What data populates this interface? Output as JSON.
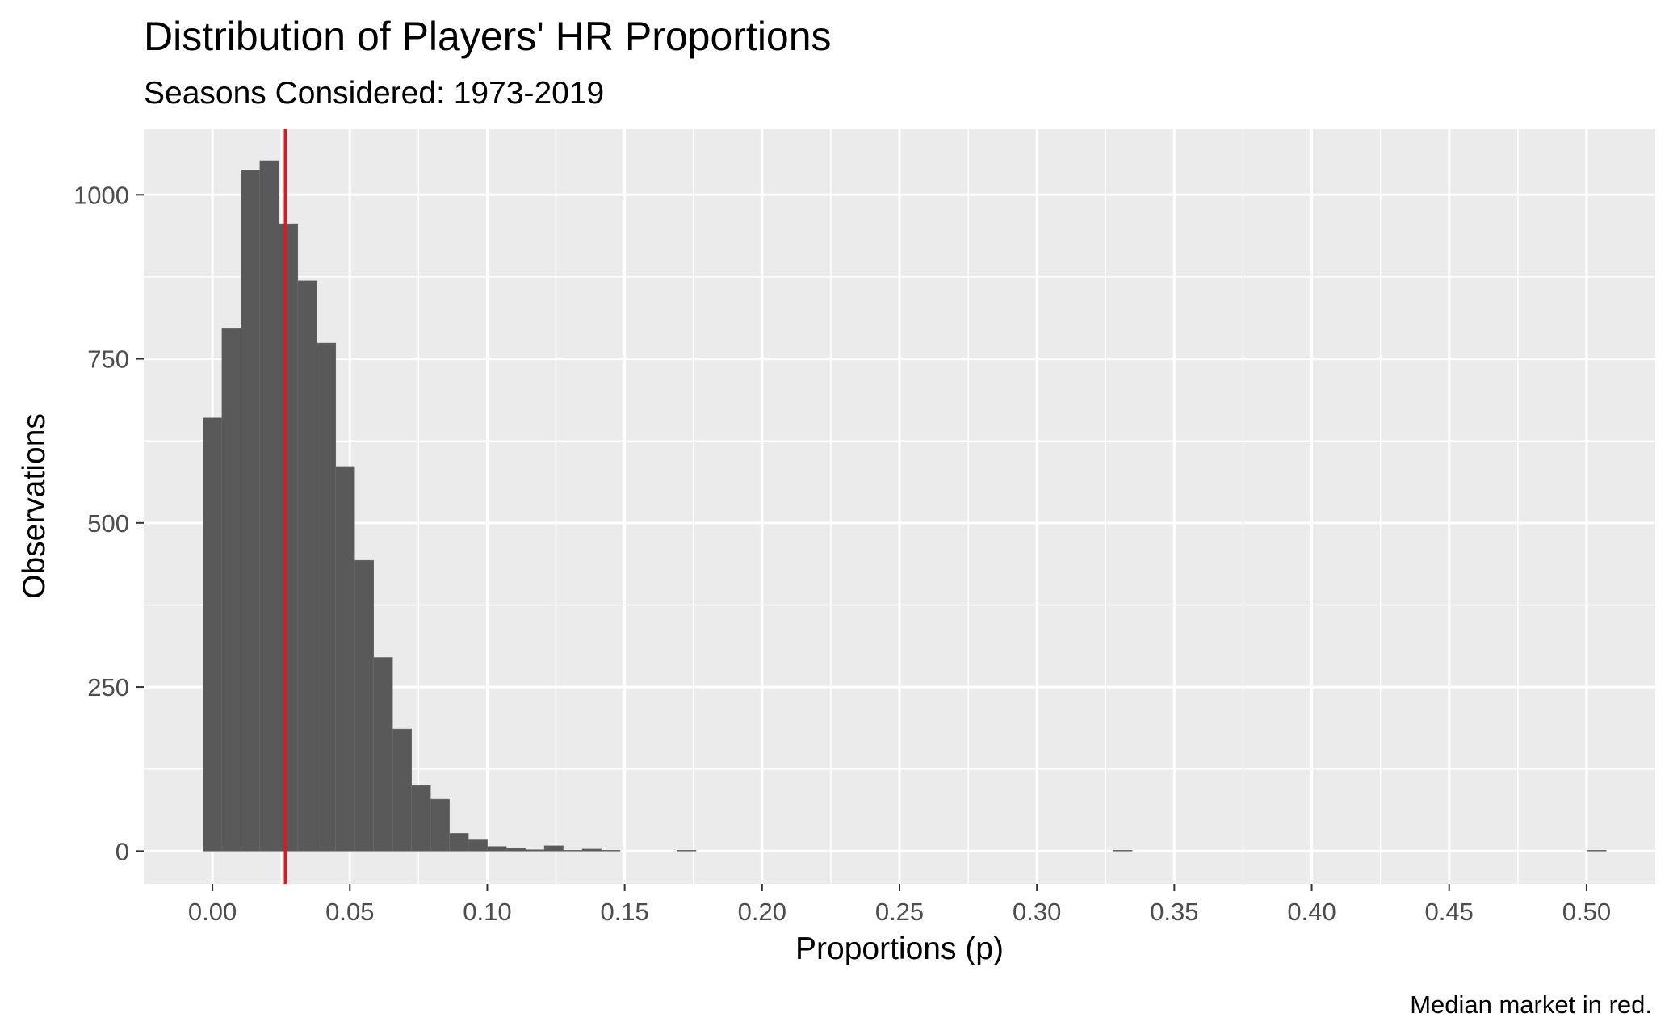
{
  "chart_data": {
    "type": "bar",
    "title": "Distribution of Players' HR Proportions",
    "subtitle": "Seasons Considered: 1973-2019",
    "xlabel": "Proportions (p)",
    "ylabel": "Observations",
    "caption": "Median market in red.",
    "xlim": [
      -0.025,
      0.525
    ],
    "ylim": [
      -50,
      1100
    ],
    "x_ticks": [
      0.0,
      0.05,
      0.1,
      0.15,
      0.2,
      0.25,
      0.3,
      0.35,
      0.4,
      0.45,
      0.5
    ],
    "x_tick_labels": [
      "0.00",
      "0.05",
      "0.10",
      "0.15",
      "0.20",
      "0.25",
      "0.30",
      "0.35",
      "0.40",
      "0.45",
      "0.50"
    ],
    "y_ticks": [
      0,
      250,
      500,
      750,
      1000
    ],
    "y_tick_labels": [
      "0",
      "250",
      "500",
      "750",
      "1000"
    ],
    "bin_width": 0.0069,
    "bin_centers": [
      0.0,
      0.0069,
      0.0138,
      0.0207,
      0.0276,
      0.0345,
      0.0414,
      0.0483,
      0.0552,
      0.0621,
      0.069,
      0.0759,
      0.0828,
      0.0897,
      0.0966,
      0.1035,
      0.1104,
      0.1173,
      0.1242,
      0.1311,
      0.138,
      0.1449,
      0.1725,
      0.3312,
      0.5037
    ],
    "values": [
      660,
      797,
      1038,
      1052,
      956,
      869,
      774,
      586,
      443,
      295,
      186,
      100,
      79,
      27,
      17,
      7,
      4,
      2,
      8,
      1,
      3,
      1,
      1,
      1,
      1
    ],
    "median_line_x": 0.0265,
    "grid": true,
    "colors": {
      "bar": "#595959",
      "median_line": "#e8141b",
      "panel": "#ebebeb",
      "grid": "#ffffff"
    }
  }
}
